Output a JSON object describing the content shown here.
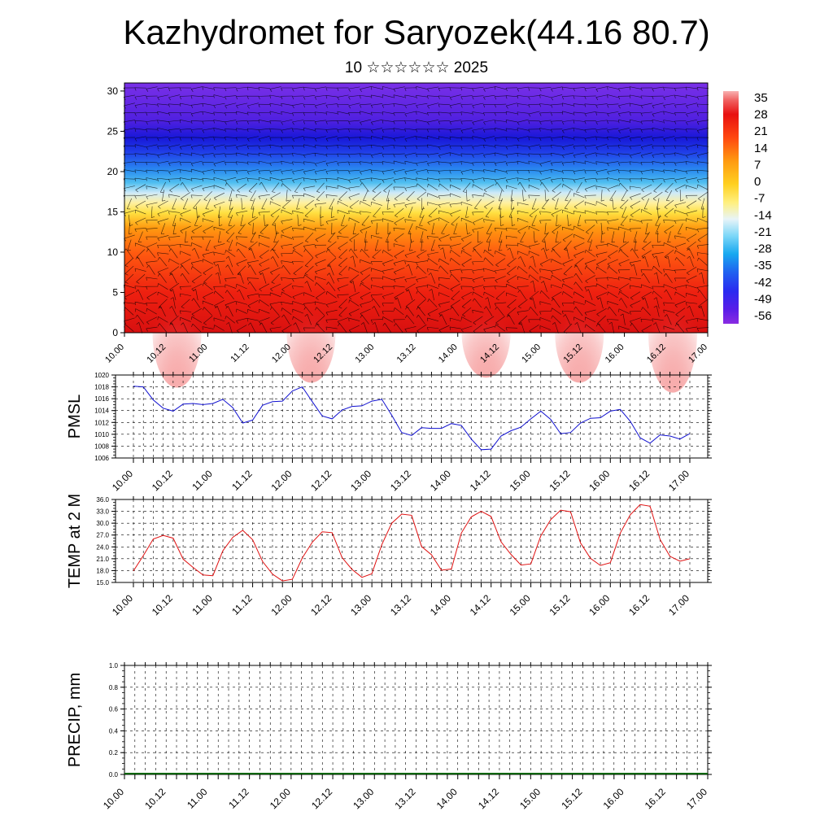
{
  "header": {
    "title": "Kazhydromet for Saryozek(44.16 80.7)",
    "subtitle": "10 ☆☆☆☆☆☆ 2025"
  },
  "chart_data": [
    {
      "type": "heatmap",
      "description_of_axes": "vertical levels vs forecast time",
      "x_ticks": [
        "10.00",
        "10.12",
        "11.00",
        "11.12",
        "12.00",
        "12.12",
        "13.00",
        "13.12",
        "14.00",
        "14.12",
        "15.00",
        "15.12",
        "16.00",
        "16.12",
        "17.00"
      ],
      "ylim": [
        0,
        31
      ],
      "y_ticks": [
        0,
        5,
        10,
        15,
        20,
        25,
        30
      ],
      "colorbar": {
        "labels": [
          "35",
          "28",
          "21",
          "14",
          "7",
          "0",
          "-7",
          "-14",
          "-21",
          "-28",
          "-35",
          "-42",
          "-49",
          "-56"
        ],
        "range": [
          -60,
          38
        ]
      },
      "temperature_profile": {
        "levels": [
          0,
          5,
          10,
          14,
          16,
          18,
          20,
          22,
          24,
          27,
          31
        ],
        "values": [
          30,
          24,
          14,
          2,
          -10,
          -22,
          -38,
          -52,
          -60,
          -56,
          -52
        ]
      },
      "wind_barbs": true
    },
    {
      "type": "line",
      "ylabel": "PMSL",
      "ylim": [
        1006,
        1020
      ],
      "y_ticks": [
        "1006",
        "1008",
        "1010",
        "1012",
        "1014",
        "1016",
        "1018",
        "1020"
      ],
      "x_ticks": [
        "10.00",
        "10.12",
        "11.00",
        "11.12",
        "12.00",
        "12.12",
        "13.00",
        "13.12",
        "14.00",
        "14.12",
        "15.00",
        "15.12",
        "16.00",
        "16.12",
        "17.00"
      ],
      "grid": true,
      "color": "#1010d0",
      "x": [
        0,
        3,
        6,
        9,
        12,
        15,
        18,
        21,
        24,
        27,
        30,
        33,
        36,
        39,
        42,
        45,
        48,
        51,
        54,
        57,
        60,
        63,
        66,
        69,
        72,
        75,
        78,
        81,
        84,
        87,
        90,
        93,
        96,
        99,
        102,
        105,
        108,
        111,
        114,
        117,
        120,
        123,
        126,
        129,
        132,
        135,
        138,
        141,
        144,
        147,
        150,
        153,
        156,
        159,
        162,
        165,
        168
      ],
      "values": [
        1018.1,
        1018.0,
        1015.8,
        1014.4,
        1013.9,
        1015.1,
        1015.2,
        1015.0,
        1015.2,
        1015.9,
        1014.5,
        1011.9,
        1012.4,
        1014.9,
        1015.5,
        1015.6,
        1017.3,
        1018.0,
        1015.5,
        1013.1,
        1012.6,
        1014.1,
        1014.7,
        1014.8,
        1015.6,
        1015.9,
        1013.2,
        1010.3,
        1009.8,
        1011.1,
        1011.0,
        1011.0,
        1011.8,
        1011.5,
        1009.2,
        1007.4,
        1007.5,
        1009.7,
        1010.6,
        1011.2,
        1012.6,
        1013.9,
        1012.5,
        1010.1,
        1010.3,
        1011.9,
        1012.7,
        1012.8,
        1013.9,
        1014.2,
        1012.2,
        1009.4,
        1008.5,
        1009.9,
        1009.7,
        1009.2,
        1010.1
      ]
    },
    {
      "type": "line",
      "ylabel": "TEMP at 2 M",
      "ylim": [
        15,
        36
      ],
      "y_ticks": [
        "15.0",
        "18.0",
        "21.0",
        "24.0",
        "27.0",
        "30.0",
        "33.0",
        "36.0"
      ],
      "x_ticks": [
        "10.00",
        "10.12",
        "11.00",
        "11.12",
        "12.00",
        "12.12",
        "13.00",
        "13.12",
        "14.00",
        "14.12",
        "15.00",
        "15.12",
        "16.00",
        "16.12",
        "17.00"
      ],
      "grid": true,
      "color": "#e01010",
      "x": [
        0,
        3,
        6,
        9,
        12,
        15,
        18,
        21,
        24,
        27,
        30,
        33,
        36,
        39,
        42,
        45,
        48,
        51,
        54,
        57,
        60,
        63,
        66,
        69,
        72,
        75,
        78,
        81,
        84,
        87,
        90,
        93,
        96,
        99,
        102,
        105,
        108,
        111,
        114,
        117,
        120,
        123,
        126,
        129,
        132,
        135,
        138,
        141,
        144,
        147,
        150,
        153,
        156,
        159,
        162,
        165,
        168
      ],
      "values": [
        17.9,
        21.8,
        26.0,
        26.9,
        26.2,
        20.9,
        18.8,
        16.9,
        16.7,
        23.0,
        26.4,
        28.2,
        25.8,
        20.3,
        17.1,
        15.4,
        15.8,
        21.2,
        25.2,
        27.8,
        27.6,
        21.3,
        18.3,
        16.3,
        17.2,
        24.6,
        30.0,
        32.3,
        32.0,
        24.1,
        22.0,
        18.1,
        18.4,
        27.5,
        31.6,
        33.0,
        31.7,
        25.3,
        22.1,
        19.4,
        19.7,
        26.8,
        30.9,
        33.3,
        32.9,
        25.0,
        21.1,
        19.3,
        20.0,
        27.5,
        32.1,
        34.7,
        34.3,
        25.9,
        21.6,
        20.4,
        21.0
      ]
    },
    {
      "type": "bar",
      "ylabel": "PRECIP, mm",
      "ylim": [
        0.0,
        1.0
      ],
      "y_ticks": [
        "0.0",
        "0.2",
        "0.4",
        "0.6",
        "0.8",
        "1.0"
      ],
      "x_ticks": [
        "10.00",
        "10.12",
        "11.00",
        "11.12",
        "12.00",
        "12.12",
        "13.00",
        "13.12",
        "14.00",
        "14.12",
        "15.00",
        "15.12",
        "16.00",
        "16.12",
        "17.00"
      ],
      "grid": true,
      "color": "#006400",
      "values_all": 0.0,
      "x_count": 57
    }
  ]
}
